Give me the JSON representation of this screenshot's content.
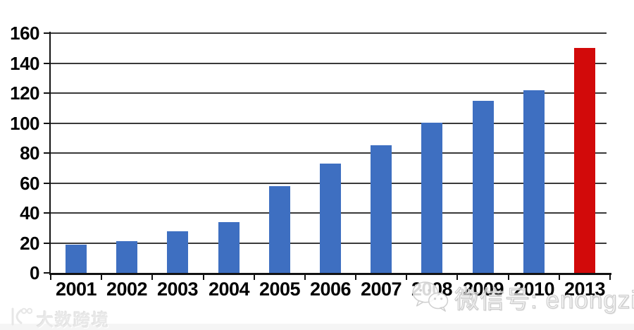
{
  "chart_data": {
    "type": "bar",
    "title": "",
    "categories": [
      "2001",
      "2002",
      "2003",
      "2004",
      "2005",
      "2006",
      "2007",
      "2008",
      "2009",
      "2010",
      "2013"
    ],
    "values": [
      19,
      21,
      28,
      34,
      58,
      73,
      85,
      100,
      115,
      122,
      150
    ],
    "highlight_index": 10,
    "xlabel": "",
    "ylabel": "",
    "ylim": [
      0,
      160
    ],
    "yticks": [
      0,
      20,
      40,
      60,
      80,
      100,
      120,
      140,
      160
    ],
    "grid": true,
    "legend_position": "none",
    "colors": {
      "bar": "#3E6FC1",
      "highlight": "#D20A0A",
      "gridline": "#3A3A3A",
      "axis": "#121212",
      "tick_label": "#000000"
    }
  },
  "watermarks": {
    "bottom_left": {
      "icon": "dashu-kuajing-logo",
      "text": "大数跨境"
    },
    "bottom_right": {
      "icon": "wechat-icon",
      "text": "微信号: enongzi"
    }
  }
}
